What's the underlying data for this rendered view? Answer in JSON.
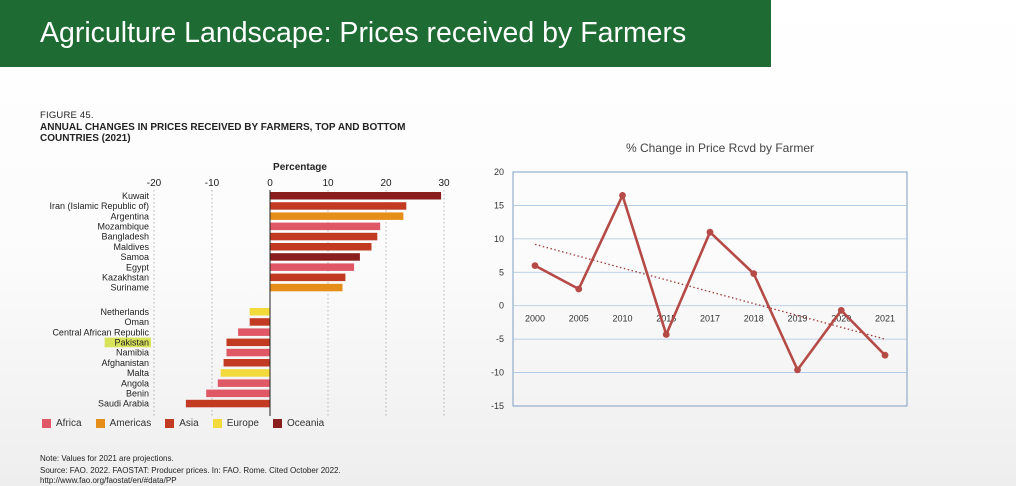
{
  "slide": {
    "title": "Agriculture Landscape: Prices received by Farmers"
  },
  "figure": {
    "number": "FIGURE 45.",
    "title": "ANNUAL CHANGES IN PRICES RECEIVED BY FARMERS, TOP AND BOTTOM COUNTRIES (2021)",
    "note": "Note: Values for 2021 are projections.",
    "source": "Source: FAO. 2022. FAOSTAT: Producer prices. In: FAO. Rome. Cited October 2022. http://www.fao.org/faostat/en/#data/PP"
  },
  "chart_data": [
    {
      "type": "bar",
      "orientation": "horizontal",
      "title": "",
      "xlabel": "Percentage",
      "xlim": [
        -20,
        30
      ],
      "xticks": [
        -20,
        -10,
        0,
        10,
        20,
        30
      ],
      "highlighted_category": "Pakistan",
      "highlight_color": "#d9e35a",
      "groups": [
        {
          "bars": [
            {
              "label": "Kuwait",
              "value": 29.5,
              "region": "Oceania"
            },
            {
              "label": "Iran (Islamic Republic of)",
              "value": 23.5,
              "region": "Asia"
            },
            {
              "label": "Argentina",
              "value": 23,
              "region": "Americas"
            },
            {
              "label": "Mozambique",
              "value": 19,
              "region": "Africa"
            },
            {
              "label": "Bangladesh",
              "value": 18.5,
              "region": "Asia"
            },
            {
              "label": "Maldives",
              "value": 17.5,
              "region": "Asia"
            },
            {
              "label": "Samoa",
              "value": 15.5,
              "region": "Oceania"
            },
            {
              "label": "Egypt",
              "value": 14.5,
              "region": "Africa"
            },
            {
              "label": "Kazakhstan",
              "value": 13,
              "region": "Asia"
            },
            {
              "label": "Suriname",
              "value": 12.5,
              "region": "Americas"
            }
          ]
        },
        {
          "bars": [
            {
              "label": "Netherlands",
              "value": -3.5,
              "region": "Europe"
            },
            {
              "label": "Oman",
              "value": -3.5,
              "region": "Asia"
            },
            {
              "label": "Central African Republic",
              "value": -5.5,
              "region": "Africa"
            },
            {
              "label": "Pakistan",
              "value": -7.5,
              "region": "Asia"
            },
            {
              "label": "Namibia",
              "value": -7.5,
              "region": "Africa"
            },
            {
              "label": "Afghanistan",
              "value": -8,
              "region": "Asia"
            },
            {
              "label": "Malta",
              "value": -8.5,
              "region": "Europe"
            },
            {
              "label": "Angola",
              "value": -9,
              "region": "Africa"
            },
            {
              "label": "Benin",
              "value": -11,
              "region": "Africa"
            },
            {
              "label": "Saudi Arabia",
              "value": -14.5,
              "region": "Asia"
            }
          ]
        }
      ],
      "legend": {
        "placement": "bottom",
        "items": [
          {
            "name": "Africa",
            "color": "#e05766"
          },
          {
            "name": "Americas",
            "color": "#e58e1a"
          },
          {
            "name": "Asia",
            "color": "#c23a22"
          },
          {
            "name": "Europe",
            "color": "#f2da3b"
          },
          {
            "name": "Oceania",
            "color": "#8a1d1d"
          }
        ]
      }
    },
    {
      "type": "line",
      "title": "% Change in Price Rcvd by Farmer",
      "categories": [
        "2000",
        "2005",
        "2010",
        "2015",
        "2017",
        "2018",
        "2019",
        "2020",
        "2021"
      ],
      "series": [
        {
          "values": [
            6,
            2.5,
            16.5,
            -4.3,
            11,
            4.8,
            -9.6,
            -0.7,
            -7.4
          ],
          "color": "#b54a47"
        }
      ],
      "trendline": {
        "type": "linear",
        "style": "dotted",
        "color": "#9e3b38"
      },
      "ylim": [
        -15,
        20
      ],
      "yticks": [
        -15,
        -10,
        -5,
        0,
        5,
        10,
        15,
        20
      ],
      "grid": true,
      "grid_color": "#a9c4e0",
      "border_color": "#7f9fc5"
    }
  ]
}
